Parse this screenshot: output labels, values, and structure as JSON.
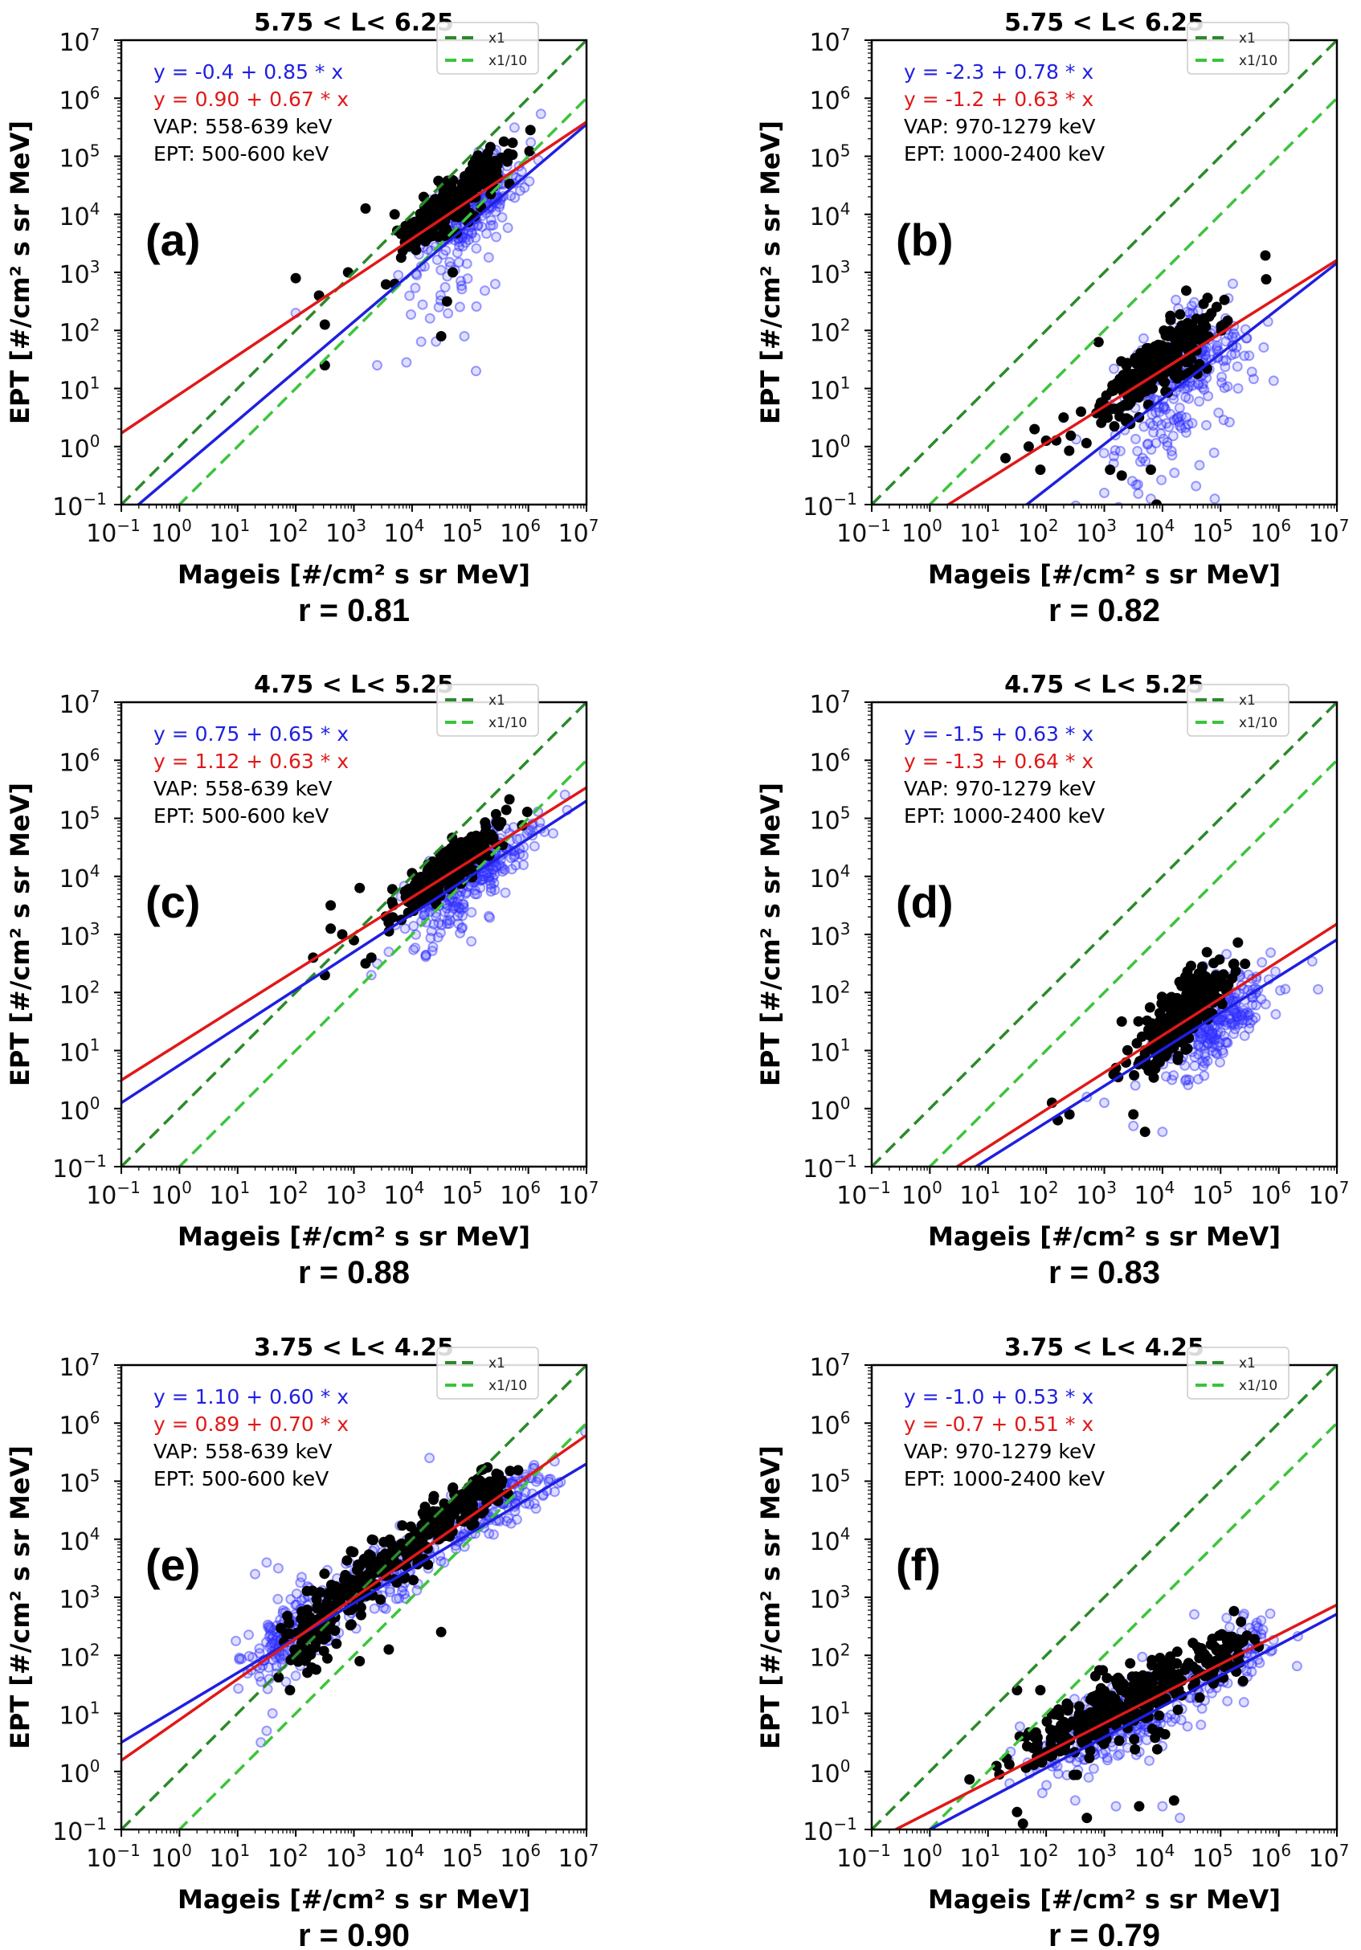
{
  "colors": {
    "blue": "#1f1fe0",
    "red": "#e01818",
    "black": "#000000",
    "dark_green": "#2a8a2a",
    "light_green": "#3cc43c",
    "blue_marker": "#3333ff"
  },
  "chart_data": [
    {
      "type": "scatter",
      "panel_label": "(a)",
      "title": "5.75 < L< 6.25",
      "xlabel": "Mageis [#/cm² s sr MeV]",
      "ylabel": "EPT [#/cm² s sr MeV]",
      "x_scale": "log",
      "y_scale": "log",
      "xlim": [
        0.1,
        10000000
      ],
      "ylim": [
        0.1,
        10000000
      ],
      "x_ticks": [
        "-1",
        "0",
        "1",
        "2",
        "3",
        "4",
        "5",
        "6",
        "7"
      ],
      "y_ticks": [
        "-1",
        "0",
        "1",
        "2",
        "3",
        "4",
        "5",
        "6",
        "7"
      ],
      "r_label": "r = 0.81",
      "fit_blue": {
        "text": "y = -0.4 + 0.85 * x",
        "intercept": -0.4,
        "slope": 0.85
      },
      "fit_red": {
        "text": "y = 0.90 + 0.67 * x",
        "intercept": 0.9,
        "slope": 0.67
      },
      "annotations": [
        "VAP: 558-639 keV",
        "EPT: 500-600 keV"
      ],
      "legend": [
        {
          "label": "x1",
          "style": "dark-green-dashed"
        },
        {
          "label": "x1/10",
          "style": "light-green-dashed"
        }
      ],
      "reference_lines": [
        {
          "name": "x1",
          "factor": 1
        },
        {
          "name": "x1/10",
          "factor": 0.1
        }
      ],
      "scatter_series": [
        {
          "name": "blue-open",
          "clusters": [
            {
              "cx": 5.0,
              "cy": 4.1,
              "sx": 0.45,
              "sy": 0.45,
              "n": 220,
              "corr": 0.7
            },
            {
              "cx": 4.6,
              "cy": 2.9,
              "sx": 0.4,
              "sy": 0.55,
              "n": 40,
              "corr": 0.2
            }
          ],
          "points": [
            [
              3.4,
              1.4
            ],
            [
              5.1,
              1.3
            ],
            [
              4.9,
              1.9
            ],
            [
              2.0,
              2.3
            ]
          ]
        },
        {
          "name": "black-filled",
          "clusters": [
            {
              "cx": 4.7,
              "cy": 4.2,
              "sx": 0.45,
              "sy": 0.42,
              "n": 260,
              "corr": 0.85
            }
          ],
          "points": [
            [
              2.0,
              2.9
            ],
            [
              2.4,
              2.6
            ],
            [
              2.5,
              1.4
            ],
            [
              2.5,
              2.1
            ],
            [
              2.9,
              3.0
            ],
            [
              3.2,
              4.1
            ],
            [
              3.7,
              4.0
            ],
            [
              3.7,
              2.8
            ],
            [
              4.2,
              4.3
            ],
            [
              4.6,
              2.5
            ],
            [
              4.5,
              1.9
            ],
            [
              4.7,
              3.0
            ]
          ]
        }
      ]
    },
    {
      "type": "scatter",
      "panel_label": "(b)",
      "title": "5.75 < L< 6.25",
      "xlabel": "Mageis [#/cm² s sr MeV]",
      "ylabel": "EPT [#/cm² s sr MeV]",
      "x_scale": "log",
      "y_scale": "log",
      "xlim": [
        0.1,
        10000000
      ],
      "ylim": [
        0.1,
        10000000
      ],
      "x_ticks": [
        "-1",
        "0",
        "1",
        "2",
        "3",
        "4",
        "5",
        "6",
        "7"
      ],
      "y_ticks": [
        "-1",
        "0",
        "1",
        "2",
        "3",
        "4",
        "5",
        "6",
        "7"
      ],
      "r_label": "r = 0.82",
      "fit_blue": {
        "text": "y = -2.3 + 0.78 * x",
        "intercept": -2.3,
        "slope": 0.78
      },
      "fit_red": {
        "text": "y = -1.2 + 0.63 * x",
        "intercept": -1.2,
        "slope": 0.63
      },
      "annotations": [
        "VAP: 970-1279 keV",
        "EPT: 1000-2400 keV"
      ],
      "legend": [
        {
          "label": "x1",
          "style": "dark-green-dashed"
        },
        {
          "label": "x1/10",
          "style": "light-green-dashed"
        }
      ],
      "reference_lines": [
        {
          "name": "x1",
          "factor": 1
        },
        {
          "name": "x1/10",
          "factor": 0.1
        }
      ],
      "scatter_series": [
        {
          "name": "blue-open",
          "clusters": [
            {
              "cx": 4.3,
              "cy": 1.2,
              "sx": 0.55,
              "sy": 0.55,
              "n": 230,
              "corr": 0.55
            },
            {
              "cx": 3.9,
              "cy": 0.1,
              "sx": 0.5,
              "sy": 0.5,
              "n": 45,
              "corr": 0.2
            }
          ],
          "points": [
            [
              3.0,
              -0.8
            ],
            [
              3.8,
              -0.9
            ],
            [
              4.9,
              -0.9
            ],
            [
              5.3,
              1.0
            ]
          ]
        },
        {
          "name": "black-filled",
          "clusters": [
            {
              "cx": 3.9,
              "cy": 1.4,
              "sx": 0.55,
              "sy": 0.5,
              "n": 260,
              "corr": 0.85
            }
          ],
          "points": [
            [
              1.3,
              -0.2
            ],
            [
              1.7,
              0.0
            ],
            [
              1.8,
              0.3
            ],
            [
              1.9,
              -0.4
            ],
            [
              2.0,
              0.1
            ],
            [
              2.3,
              0.5
            ],
            [
              2.9,
              1.8
            ],
            [
              3.1,
              -0.4
            ],
            [
              3.3,
              -0.5
            ],
            [
              3.8,
              -0.4
            ],
            [
              3.9,
              -1.0
            ],
            [
              2.6,
              0.6
            ]
          ]
        }
      ]
    },
    {
      "type": "scatter",
      "panel_label": "(c)",
      "title": "4.75 < L< 5.25",
      "xlabel": "Mageis [#/cm² s sr MeV]",
      "ylabel": "EPT [#/cm² s sr MeV]",
      "x_scale": "log",
      "y_scale": "log",
      "xlim": [
        0.1,
        10000000
      ],
      "ylim": [
        0.1,
        10000000
      ],
      "x_ticks": [
        "-1",
        "0",
        "1",
        "2",
        "3",
        "4",
        "5",
        "6",
        "7"
      ],
      "y_ticks": [
        "-1",
        "0",
        "1",
        "2",
        "3",
        "4",
        "5",
        "6",
        "7"
      ],
      "r_label": "r = 0.88",
      "fit_blue": {
        "text": "y = 0.75 + 0.65 * x",
        "intercept": 0.75,
        "slope": 0.65
      },
      "fit_red": {
        "text": "y = 1.12 + 0.63 * x",
        "intercept": 1.12,
        "slope": 0.63
      },
      "annotations": [
        "VAP: 558-639 keV",
        "EPT: 500-600 keV"
      ],
      "legend": [
        {
          "label": "x1",
          "style": "dark-green-dashed"
        },
        {
          "label": "x1/10",
          "style": "light-green-dashed"
        }
      ],
      "reference_lines": [
        {
          "name": "x1",
          "factor": 1
        },
        {
          "name": "x1/10",
          "factor": 0.1
        }
      ],
      "scatter_series": [
        {
          "name": "blue-open",
          "clusters": [
            {
              "cx": 5.1,
              "cy": 4.1,
              "sx": 0.5,
              "sy": 0.42,
              "n": 240,
              "corr": 0.8
            },
            {
              "cx": 4.6,
              "cy": 3.3,
              "sx": 0.4,
              "sy": 0.3,
              "n": 40,
              "corr": 0.4
            }
          ],
          "points": [
            [
              3.4,
              2.5
            ],
            [
              3.6,
              2.7
            ],
            [
              3.3,
              2.3
            ]
          ]
        },
        {
          "name": "black-filled",
          "clusters": [
            {
              "cx": 4.6,
              "cy": 4.1,
              "sx": 0.45,
              "sy": 0.38,
              "n": 280,
              "corr": 0.88
            }
          ],
          "points": [
            [
              2.3,
              2.6
            ],
            [
              2.6,
              3.5
            ],
            [
              2.6,
              3.1
            ],
            [
              2.8,
              3.0
            ],
            [
              3.0,
              2.9
            ],
            [
              3.1,
              3.8
            ],
            [
              3.2,
              2.5
            ],
            [
              3.3,
              2.6
            ],
            [
              2.5,
              2.3
            ]
          ]
        }
      ]
    },
    {
      "type": "scatter",
      "panel_label": "(d)",
      "title": "4.75 < L< 5.25",
      "xlabel": "Mageis [#/cm² s sr MeV]",
      "ylabel": "EPT [#/cm² s sr MeV]",
      "x_scale": "log",
      "y_scale": "log",
      "xlim": [
        0.1,
        10000000
      ],
      "ylim": [
        0.1,
        10000000
      ],
      "x_ticks": [
        "-1",
        "0",
        "1",
        "2",
        "3",
        "4",
        "5",
        "6",
        "7"
      ],
      "y_ticks": [
        "-1",
        "0",
        "1",
        "2",
        "3",
        "4",
        "5",
        "6",
        "7"
      ],
      "r_label": "r = 0.83",
      "fit_blue": {
        "text": "y = -1.5 + 0.63 * x",
        "intercept": -1.5,
        "slope": 0.63
      },
      "fit_red": {
        "text": "y = -1.3 + 0.64 * x",
        "intercept": -1.3,
        "slope": 0.64
      },
      "annotations": [
        "VAP: 970-1279 keV",
        "EPT: 1000-2400 keV"
      ],
      "legend": [
        {
          "label": "x1",
          "style": "dark-green-dashed"
        },
        {
          "label": "x1/10",
          "style": "light-green-dashed"
        }
      ],
      "reference_lines": [
        {
          "name": "x1",
          "factor": 1
        },
        {
          "name": "x1/10",
          "factor": 0.1
        }
      ],
      "scatter_series": [
        {
          "name": "blue-open",
          "clusters": [
            {
              "cx": 4.9,
              "cy": 1.5,
              "sx": 0.5,
              "sy": 0.45,
              "n": 250,
              "corr": 0.6
            }
          ],
          "points": [
            [
              3.0,
              0.1
            ],
            [
              3.5,
              -0.3
            ],
            [
              4.0,
              -0.4
            ],
            [
              2.7,
              0.2
            ]
          ]
        },
        {
          "name": "black-filled",
          "clusters": [
            {
              "cx": 4.3,
              "cy": 1.6,
              "sx": 0.4,
              "sy": 0.45,
              "n": 280,
              "corr": 0.8
            }
          ],
          "points": [
            [
              2.1,
              0.1
            ],
            [
              2.2,
              -0.2
            ],
            [
              2.4,
              -0.1
            ],
            [
              3.2,
              0.7
            ],
            [
              3.5,
              -0.1
            ],
            [
              3.7,
              -0.4
            ],
            [
              3.3,
              1.5
            ]
          ]
        }
      ]
    },
    {
      "type": "scatter",
      "panel_label": "(e)",
      "title": "3.75 < L< 4.25",
      "xlabel": "Mageis [#/cm² s sr MeV]",
      "ylabel": "EPT [#/cm² s sr MeV]",
      "x_scale": "log",
      "y_scale": "log",
      "xlim": [
        0.1,
        10000000
      ],
      "ylim": [
        0.1,
        10000000
      ],
      "x_ticks": [
        "-1",
        "0",
        "1",
        "2",
        "3",
        "4",
        "5",
        "6",
        "7"
      ],
      "y_ticks": [
        "-1",
        "0",
        "1",
        "2",
        "3",
        "4",
        "5",
        "6",
        "7"
      ],
      "r_label": "r = 0.90",
      "fit_blue": {
        "text": "y = 1.10 + 0.60 * x",
        "intercept": 1.1,
        "slope": 0.6
      },
      "fit_red": {
        "text": "y = 0.89 + 0.70 * x",
        "intercept": 0.89,
        "slope": 0.7
      },
      "annotations": [
        "VAP: 558-639 keV",
        "EPT: 500-600 keV"
      ],
      "legend": [
        {
          "label": "x1",
          "style": "dark-green-dashed"
        },
        {
          "label": "x1/10",
          "style": "light-green-dashed"
        }
      ],
      "reference_lines": [
        {
          "name": "x1",
          "factor": 1
        },
        {
          "name": "x1/10",
          "factor": 0.1
        }
      ],
      "scatter_series": [
        {
          "name": "blue-open",
          "clusters": [
            {
              "cx": 1.8,
              "cy": 2.3,
              "sx": 0.35,
              "sy": 0.4,
              "n": 140,
              "corr": 0.5
            },
            {
              "cx": 3.9,
              "cy": 3.6,
              "sx": 1.0,
              "sy": 0.7,
              "n": 200,
              "corr": 0.9
            },
            {
              "cx": 5.6,
              "cy": 4.7,
              "sx": 0.35,
              "sy": 0.25,
              "n": 90,
              "corr": 0.6
            }
          ],
          "points": [
            [
              1.5,
              3.6
            ],
            [
              1.3,
              3.4
            ],
            [
              1.7,
              3.5
            ],
            [
              1.6,
              1.0
            ],
            [
              1.4,
              0.5
            ],
            [
              1.5,
              0.7
            ],
            [
              4.3,
              5.4
            ]
          ]
        },
        {
          "name": "black-filled",
          "clusters": [
            {
              "cx": 2.4,
              "cy": 2.5,
              "sx": 0.3,
              "sy": 0.4,
              "n": 110,
              "corr": 0.7
            },
            {
              "cx": 3.7,
              "cy": 3.7,
              "sx": 0.8,
              "sy": 0.6,
              "n": 170,
              "corr": 0.9
            },
            {
              "cx": 5.0,
              "cy": 4.7,
              "sx": 0.4,
              "sy": 0.3,
              "n": 80,
              "corr": 0.7
            }
          ],
          "points": [
            [
              1.9,
              1.4
            ],
            [
              2.2,
              1.7
            ],
            [
              3.1,
              1.9
            ],
            [
              2.7,
              2.2
            ],
            [
              3.6,
              2.1
            ],
            [
              4.5,
              2.4
            ]
          ]
        }
      ]
    },
    {
      "type": "scatter",
      "panel_label": "(f)",
      "title": "3.75 < L< 4.25",
      "xlabel": "Mageis [#/cm² s sr MeV]",
      "ylabel": "EPT [#/cm² s sr MeV]",
      "x_scale": "log",
      "y_scale": "log",
      "xlim": [
        0.1,
        10000000
      ],
      "ylim": [
        0.1,
        10000000
      ],
      "x_ticks": [
        "-1",
        "0",
        "1",
        "2",
        "3",
        "4",
        "5",
        "6",
        "7"
      ],
      "y_ticks": [
        "-1",
        "0",
        "1",
        "2",
        "3",
        "4",
        "5",
        "6",
        "7"
      ],
      "r_label": "r = 0.79",
      "fit_blue": {
        "text": "y = -1.0 + 0.53 * x",
        "intercept": -1.0,
        "slope": 0.53
      },
      "fit_red": {
        "text": "y = -0.7 + 0.51 * x",
        "intercept": -0.7,
        "slope": 0.51
      },
      "annotations": [
        "VAP: 970-1279 keV",
        "EPT: 1000-2400 keV"
      ],
      "legend": [
        {
          "label": "x1",
          "style": "dark-green-dashed"
        },
        {
          "label": "x1/10",
          "style": "light-green-dashed"
        }
      ],
      "reference_lines": [
        {
          "name": "x1",
          "factor": 1
        },
        {
          "name": "x1/10",
          "factor": 0.1
        }
      ],
      "scatter_series": [
        {
          "name": "blue-open",
          "clusters": [
            {
              "cx": 3.4,
              "cy": 0.9,
              "sx": 0.9,
              "sy": 0.5,
              "n": 260,
              "corr": 0.75
            },
            {
              "cx": 5.4,
              "cy": 2.1,
              "sx": 0.3,
              "sy": 0.3,
              "n": 60,
              "corr": 0.5
            }
          ],
          "points": [
            [
              2.5,
              -0.5
            ],
            [
              3.2,
              -0.6
            ],
            [
              4.0,
              -0.6
            ],
            [
              4.3,
              -0.8
            ]
          ]
        },
        {
          "name": "black-filled",
          "clusters": [
            {
              "cx": 3.2,
              "cy": 1.1,
              "sx": 0.85,
              "sy": 0.5,
              "n": 300,
              "corr": 0.8
            },
            {
              "cx": 4.9,
              "cy": 2.0,
              "sx": 0.35,
              "sy": 0.3,
              "n": 60,
              "corr": 0.6
            }
          ],
          "points": [
            [
              1.5,
              1.4
            ],
            [
              1.9,
              1.4
            ],
            [
              1.5,
              -0.7
            ],
            [
              1.6,
              -0.9
            ],
            [
              2.7,
              -0.8
            ],
            [
              3.6,
              -0.6
            ],
            [
              4.2,
              -0.5
            ]
          ]
        }
      ]
    }
  ]
}
